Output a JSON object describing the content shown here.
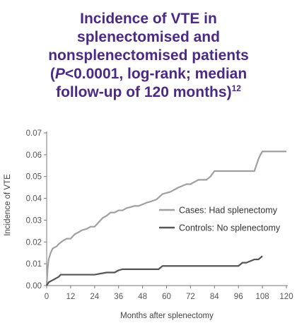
{
  "title": {
    "line1": "Incidence of VTE in",
    "line2": "splenectomised and",
    "line3": "nonsplenectomised patients",
    "line4_open": "(",
    "line4_p": "P",
    "line4_rest": "<0.0001, log-rank; median",
    "line5": "follow-up of 120 months)",
    "ref": "12"
  },
  "chart_data": {
    "type": "line",
    "title": "Incidence of VTE in splenectomised and nonsplenectomised patients (P<0.0001, log-rank; median follow-up of 120 months)",
    "xlabel": "Months after splenectomy",
    "ylabel": "Incidence of VTE",
    "xlim": [
      0,
      120
    ],
    "ylim": [
      0,
      0.07
    ],
    "x_ticks": [
      0,
      12,
      24,
      36,
      48,
      60,
      72,
      84,
      96,
      108,
      120
    ],
    "y_ticks": [
      0.0,
      0.01,
      0.02,
      0.03,
      0.04,
      0.05,
      0.06,
      0.07
    ],
    "y_tick_labels": [
      "0.00",
      "0.01",
      "0.02",
      "0.03",
      "0.04",
      "0.05",
      "0.06",
      "0.07"
    ],
    "grid": false,
    "legend_position": "center-right",
    "series": [
      {
        "name": "Cases: Had splenectomy",
        "color": "#a0a0a0",
        "x": [
          0,
          0.5,
          1,
          2,
          3,
          4,
          5,
          6,
          8,
          10,
          12,
          14,
          16,
          18,
          20,
          22,
          24,
          26,
          28,
          30,
          32,
          34,
          36,
          38,
          40,
          44,
          46,
          50,
          52,
          55,
          58,
          62,
          64,
          66,
          70,
          72,
          76,
          80,
          82,
          84,
          88,
          92,
          96,
          99,
          100,
          104,
          106,
          107,
          108,
          110,
          120
        ],
        "y": [
          0.0,
          0.008,
          0.012,
          0.015,
          0.017,
          0.0175,
          0.018,
          0.019,
          0.0205,
          0.0215,
          0.0215,
          0.0235,
          0.0245,
          0.0255,
          0.026,
          0.027,
          0.027,
          0.029,
          0.031,
          0.032,
          0.0335,
          0.0335,
          0.0345,
          0.0345,
          0.0355,
          0.0365,
          0.0365,
          0.038,
          0.0385,
          0.0395,
          0.042,
          0.043,
          0.044,
          0.045,
          0.0465,
          0.0465,
          0.0485,
          0.0485,
          0.05,
          0.0525,
          0.0525,
          0.0525,
          0.0525,
          0.0525,
          0.0525,
          0.0525,
          0.058,
          0.06,
          0.0615,
          0.0615,
          0.0615
        ]
      },
      {
        "name": "Controls: No splenectomy",
        "color": "#555555",
        "x": [
          0,
          1,
          2,
          3,
          4,
          5,
          6,
          7,
          12,
          24,
          30,
          34,
          36,
          38,
          48,
          56,
          58,
          60,
          72,
          84,
          96,
          98,
          100,
          104,
          106,
          108
        ],
        "y": [
          0.0,
          0.0015,
          0.002,
          0.0025,
          0.003,
          0.0035,
          0.004,
          0.005,
          0.005,
          0.005,
          0.006,
          0.006,
          0.007,
          0.0075,
          0.0075,
          0.0075,
          0.009,
          0.009,
          0.009,
          0.009,
          0.009,
          0.0105,
          0.0105,
          0.012,
          0.012,
          0.0135
        ]
      }
    ]
  }
}
